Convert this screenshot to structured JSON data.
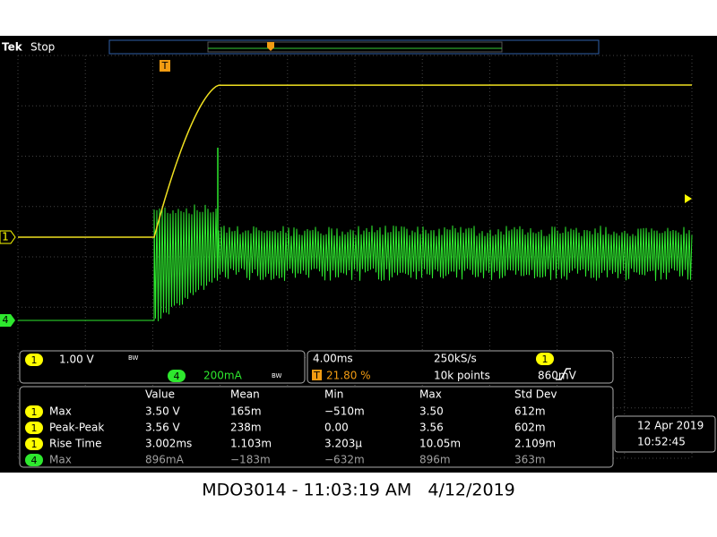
{
  "header": {
    "brand": "Tek",
    "status": "Stop"
  },
  "markers": {
    "trigger_position": "T",
    "ch1": "1",
    "ch4": "4"
  },
  "channel_settings": [
    {
      "channel": "1",
      "scale": "1.00 V",
      "bandwidth": "BW"
    },
    {
      "channel": "4",
      "scale": "200mA",
      "bandwidth": "BW"
    }
  ],
  "acquisition": {
    "time_per_div": "4.00ms",
    "sample_rate": "250kS/s",
    "trigger_channel": "1",
    "trigger_icon": "T",
    "trigger_position": "21.80 %",
    "record_length": "10k points",
    "trigger_level": "860mV"
  },
  "measurements": {
    "columns": [
      "Value",
      "Mean",
      "Min",
      "Max",
      "Std Dev"
    ],
    "rows": [
      {
        "channel": "1",
        "name": "Max",
        "cells": [
          "3.50 V",
          "165m",
          "−510m",
          "3.50",
          "612m"
        ]
      },
      {
        "channel": "1",
        "name": "Peak-Peak",
        "cells": [
          "3.56 V",
          "238m",
          "0.00",
          "3.56",
          "602m"
        ]
      },
      {
        "channel": "1",
        "name": "Rise Time",
        "cells": [
          "3.002ms",
          "1.103m",
          "3.203µ",
          "10.05m",
          "2.109m"
        ]
      },
      {
        "channel": "4",
        "name": "Max",
        "cells": [
          "896mA",
          "−183m",
          "−632m",
          "896m",
          "363m"
        ]
      }
    ]
  },
  "clock": {
    "date": "12 Apr 2019",
    "time": "10:52:45"
  },
  "caption": "MDO3014 - 11:03:19 AM   4/12/2019"
}
